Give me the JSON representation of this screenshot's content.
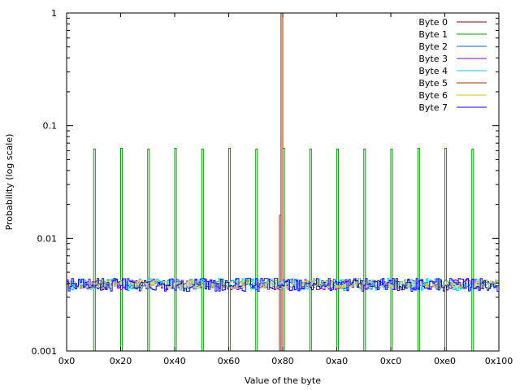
{
  "chart_data": {
    "type": "line",
    "title": "",
    "xlabel": "Value of the byte",
    "ylabel": "Probability (log scale)",
    "x_scale": "linear",
    "y_scale": "log",
    "xlim": [
      0,
      256
    ],
    "ylim": [
      0.001,
      1
    ],
    "x_ticks": [
      0,
      32,
      64,
      96,
      128,
      160,
      192,
      224,
      256
    ],
    "x_tick_labels": [
      "0x0",
      "0x20",
      "0x40",
      "0x60",
      "0x80",
      "0xa0",
      "0xc0",
      "0xe0",
      "0x100"
    ],
    "y_ticks": [
      0.001,
      0.01,
      0.1,
      1
    ],
    "y_tick_labels": [
      "0.001",
      "0.01",
      "0.1",
      "1"
    ],
    "grid": false,
    "legend_position": "top-right",
    "series": [
      {
        "name": "Byte 0",
        "color": "#8b0000",
        "style": "steps",
        "points": [
          {
            "x": 0,
            "y": 0.001
          },
          {
            "x": 127,
            "y": 0.001
          },
          {
            "x": 127,
            "y": 1
          },
          {
            "x": 128,
            "y": 1
          },
          {
            "x": 128,
            "y": 0.001
          },
          {
            "x": 256,
            "y": 0.001
          }
        ]
      },
      {
        "name": "Byte 1",
        "color": "#00a000",
        "style": "spikes",
        "points": [
          {
            "x": 16,
            "y": 0.062
          },
          {
            "x": 32,
            "y": 0.063
          },
          {
            "x": 48,
            "y": 0.062
          },
          {
            "x": 64,
            "y": 0.063
          },
          {
            "x": 80,
            "y": 0.062
          },
          {
            "x": 96,
            "y": 0.063
          },
          {
            "x": 112,
            "y": 0.062
          },
          {
            "x": 128,
            "y": 0.063
          },
          {
            "x": 144,
            "y": 0.062
          },
          {
            "x": 160,
            "y": 0.062
          },
          {
            "x": 176,
            "y": 0.062
          },
          {
            "x": 192,
            "y": 0.062
          },
          {
            "x": 208,
            "y": 0.063
          },
          {
            "x": 224,
            "y": 0.063
          },
          {
            "x": 240,
            "y": 0.062
          }
        ]
      },
      {
        "name": "Byte 2",
        "color": "#0066cc",
        "style": "noise",
        "mean": 0.0039,
        "range": [
          0.0035,
          0.0044
        ]
      },
      {
        "name": "Byte 3",
        "color": "#9400d3",
        "style": "noise",
        "mean": 0.0039,
        "range": [
          0.0035,
          0.0045
        ]
      },
      {
        "name": "Byte 4",
        "color": "#00d0d0",
        "style": "noise",
        "mean": 0.0039,
        "range": [
          0.0034,
          0.0045
        ]
      },
      {
        "name": "Byte 5",
        "color": "#b03000",
        "style": "steps",
        "points": [
          {
            "x": 0,
            "y": 0.001
          },
          {
            "x": 126,
            "y": 0.001
          },
          {
            "x": 126,
            "y": 0.016
          },
          {
            "x": 127,
            "y": 0.016
          },
          {
            "x": 127,
            "y": 1
          },
          {
            "x": 128,
            "y": 1
          },
          {
            "x": 128,
            "y": 0.001
          },
          {
            "x": 256,
            "y": 0.001
          }
        ]
      },
      {
        "name": "Byte 6",
        "color": "#c8c800",
        "style": "noise",
        "mean": 0.0039,
        "range": [
          0.0036,
          0.0043
        ]
      },
      {
        "name": "Byte 7",
        "color": "#0000ff",
        "style": "noise",
        "mean": 0.0039,
        "range": [
          0.0032,
          0.0044
        ]
      }
    ]
  }
}
